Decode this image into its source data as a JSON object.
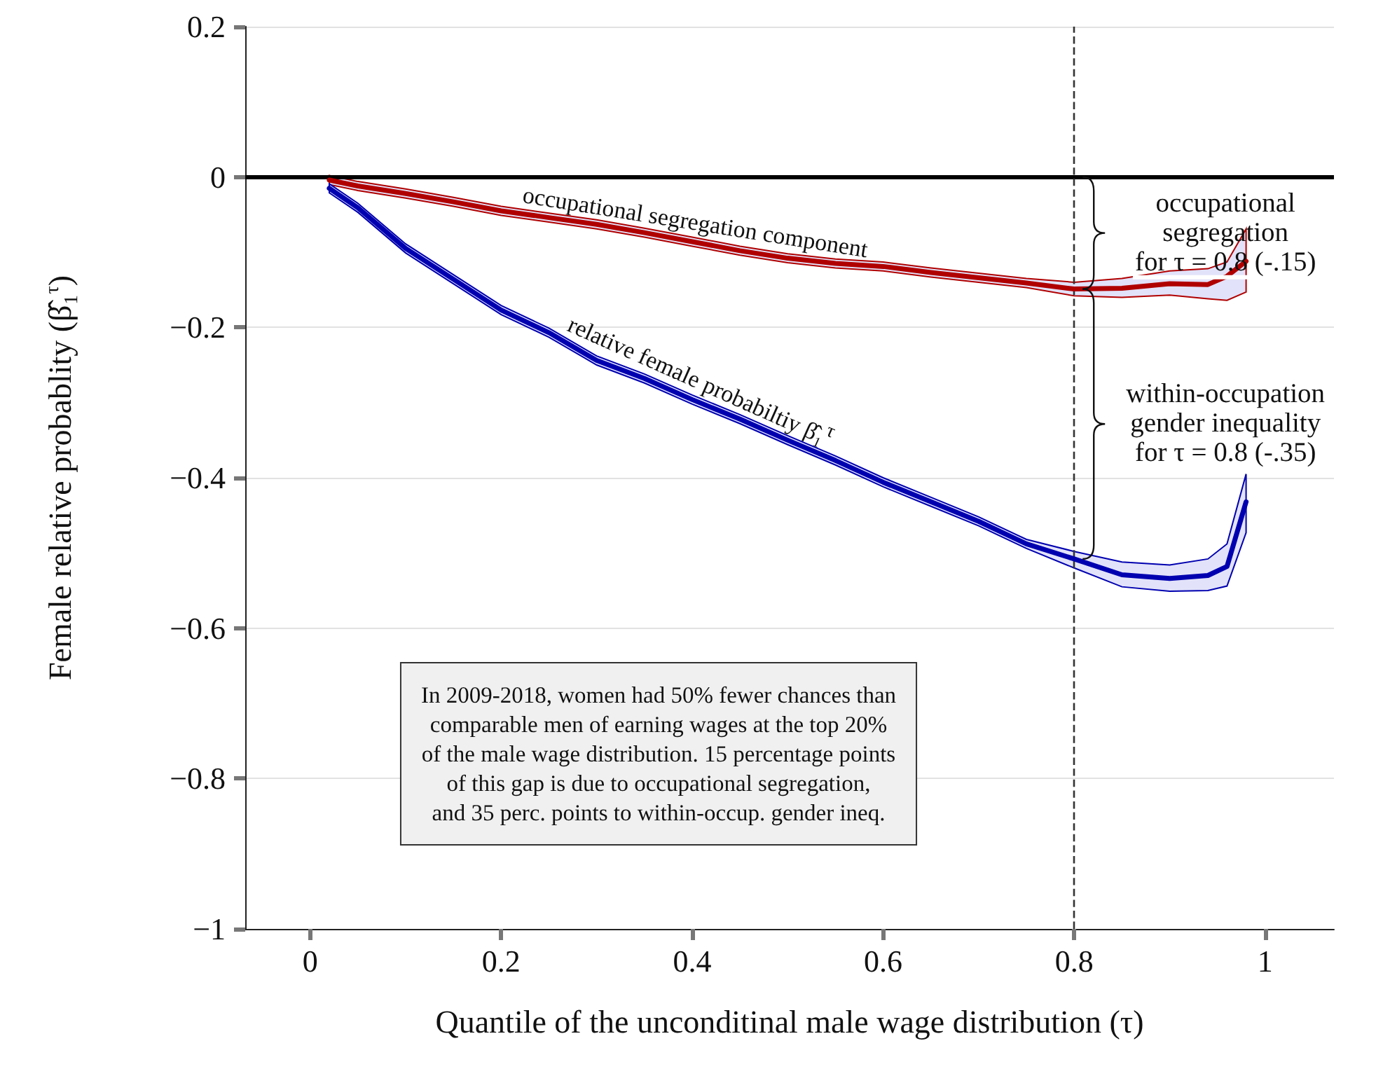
{
  "chart_data": {
    "type": "line",
    "xlabel": "Quantile of the unconditinal male wage distribution (τ)",
    "ylabel": "Female relative probablity (β̂₁$^{τ}$)",
    "x": [
      0.02,
      0.05,
      0.1,
      0.15,
      0.2,
      0.25,
      0.3,
      0.35,
      0.4,
      0.45,
      0.5,
      0.55,
      0.6,
      0.65,
      0.7,
      0.75,
      0.8,
      0.85,
      0.9,
      0.94,
      0.96,
      0.98
    ],
    "series": [
      {
        "name": "occupational segregation component",
        "color": "#b00000",
        "values": [
          -0.004,
          -0.012,
          -0.022,
          -0.033,
          -0.045,
          -0.054,
          -0.063,
          -0.074,
          -0.086,
          -0.098,
          -0.108,
          -0.115,
          -0.119,
          -0.127,
          -0.134,
          -0.141,
          -0.149,
          -0.148,
          -0.142,
          -0.143,
          -0.132,
          -0.112
        ],
        "lower": [
          -0.01,
          -0.018,
          -0.028,
          -0.039,
          -0.051,
          -0.06,
          -0.069,
          -0.08,
          -0.092,
          -0.104,
          -0.114,
          -0.121,
          -0.125,
          -0.133,
          -0.14,
          -0.147,
          -0.158,
          -0.16,
          -0.157,
          -0.162,
          -0.164,
          -0.153
        ],
        "upper": [
          0.002,
          -0.006,
          -0.016,
          -0.027,
          -0.039,
          -0.048,
          -0.057,
          -0.068,
          -0.08,
          -0.092,
          -0.102,
          -0.109,
          -0.113,
          -0.121,
          -0.128,
          -0.135,
          -0.14,
          -0.135,
          -0.125,
          -0.122,
          -0.113,
          -0.069
        ]
      },
      {
        "name": "relative female probabiltiy β̂₁$^{τ}$",
        "color": "#0000b0",
        "values": [
          -0.015,
          -0.041,
          -0.095,
          -0.136,
          -0.177,
          -0.207,
          -0.244,
          -0.268,
          -0.296,
          -0.322,
          -0.35,
          -0.377,
          -0.406,
          -0.432,
          -0.458,
          -0.488,
          -0.508,
          -0.529,
          -0.534,
          -0.53,
          -0.518,
          -0.432
        ],
        "lower": [
          -0.021,
          -0.047,
          -0.101,
          -0.142,
          -0.183,
          -0.213,
          -0.25,
          -0.274,
          -0.302,
          -0.328,
          -0.356,
          -0.383,
          -0.412,
          -0.438,
          -0.464,
          -0.494,
          -0.52,
          -0.545,
          -0.551,
          -0.55,
          -0.544,
          -0.473
        ],
        "upper": [
          -0.009,
          -0.035,
          -0.089,
          -0.13,
          -0.171,
          -0.201,
          -0.238,
          -0.262,
          -0.29,
          -0.316,
          -0.344,
          -0.371,
          -0.4,
          -0.426,
          -0.452,
          -0.482,
          -0.498,
          -0.512,
          -0.516,
          -0.508,
          -0.488,
          -0.395
        ]
      }
    ],
    "xlim": [
      -0.068,
      1.072
    ],
    "xticks": [
      0,
      0.2,
      0.4,
      0.6,
      0.8,
      1
    ],
    "ylim": [
      -1,
      0.2
    ],
    "yticks": [
      0.2,
      {
        "value": 0,
        "label": "0"
      },
      {
        "value": -0.2,
        "label": "−0.2"
      },
      {
        "value": -0.4,
        "label": "−0.4"
      },
      {
        "value": -0.6,
        "label": "−0.6"
      },
      {
        "value": -0.8,
        "label": "−0.8"
      },
      {
        "value": -1,
        "label": "−1"
      }
    ],
    "grid": "y",
    "legend": false,
    "marker": "none",
    "line_style": "solid",
    "ref_lines": [
      {
        "axis": "y",
        "value": 0,
        "color": "#000000",
        "line_style": "solid"
      },
      {
        "axis": "x",
        "value": 0.8,
        "color": "#333333",
        "line_style": "dashed"
      }
    ],
    "annotations": [
      {
        "text": "occupational\nsegregation\nfor τ = 0.8 (-.15)",
        "x": 0.8,
        "y": -0.075
      },
      {
        "text": "within-occupation\ngender inequality\nfor τ = 0.8 (-.35)",
        "x": 0.8,
        "y": -0.33
      },
      "In 2009-2018, women had 50% fewer chances than\ncomparable men of earning wages at the top 20%\nof the male wage distribution. 15 percentage points\nof this gap is due to occupational segregation,\nand 35 perc. points to within-occup. gender ineq."
    ]
  }
}
